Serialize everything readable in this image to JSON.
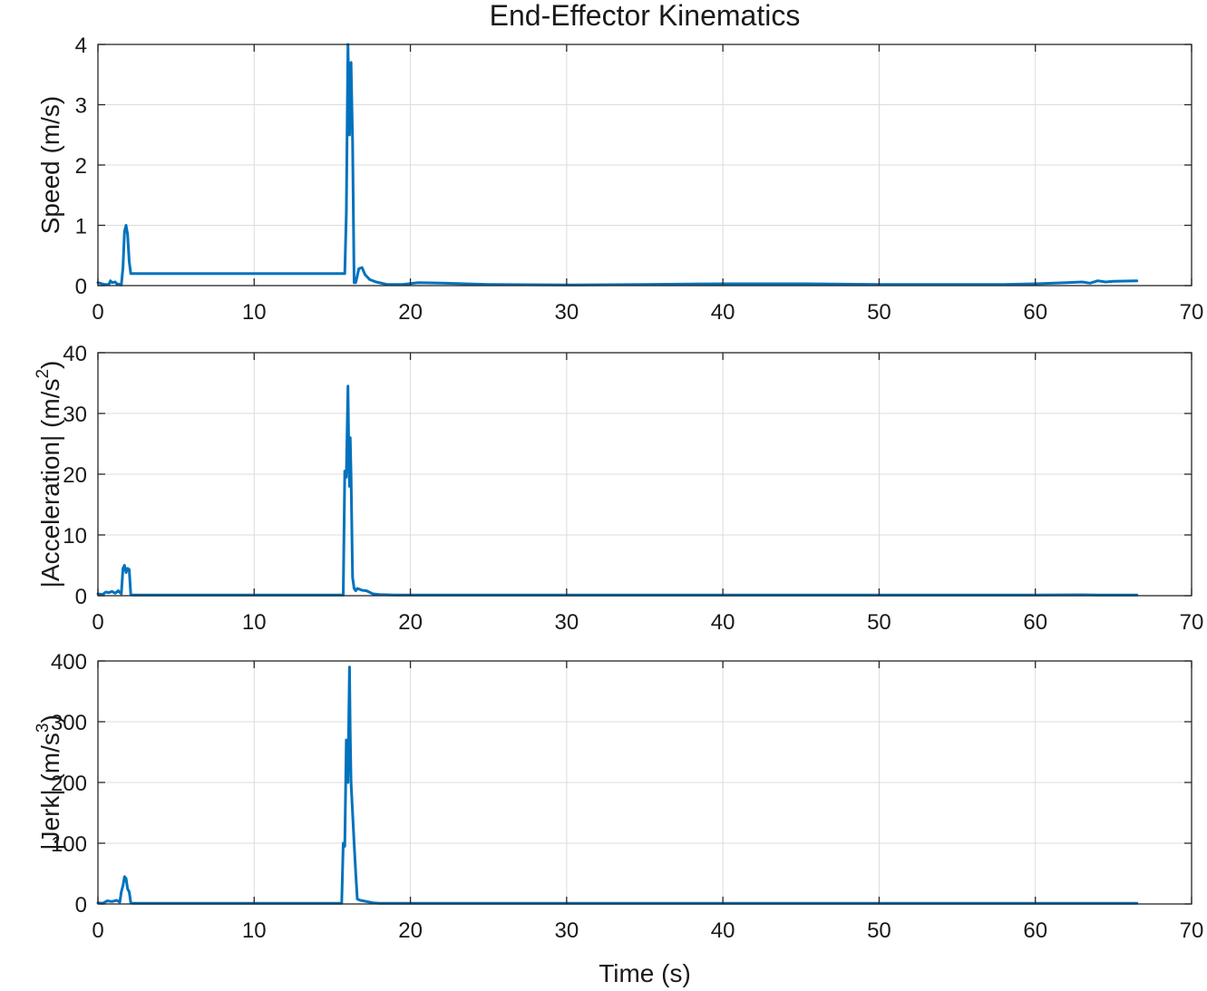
{
  "figure": {
    "title": "End-Effector Kinematics",
    "xlabel": "Time (s)"
  },
  "colors": {
    "series": "#0072BD"
  },
  "chart_data": [
    {
      "type": "line",
      "ylabel": "Speed (m/s)",
      "ylabel_super": "",
      "ylabel_suffix": "",
      "xlim": [
        0,
        70
      ],
      "ylim": [
        0,
        4
      ],
      "xticks": [
        0,
        10,
        20,
        30,
        40,
        50,
        60,
        70
      ],
      "yticks": [
        0,
        1,
        2,
        3,
        4
      ],
      "grid": true,
      "series": [
        {
          "x": [
            0,
            0.4,
            0.7,
            0.8,
            0.9,
            1.1,
            1.2,
            1.4,
            1.5,
            1.6,
            1.7,
            1.8,
            1.9,
            2.0,
            2.1,
            2.2,
            2.3,
            5,
            10,
            15,
            15.8,
            15.9,
            16.0,
            16.1,
            16.2,
            16.3,
            16.4,
            16.5,
            16.7,
            16.9,
            17.1,
            17.4,
            17.8,
            18.5,
            19.5,
            20.5,
            22,
            25,
            30,
            35,
            40,
            45,
            50,
            55,
            58,
            60,
            62,
            63,
            63.5,
            64,
            64.5,
            65,
            66.5
          ],
          "y": [
            0.05,
            0.02,
            0.02,
            0.08,
            0.05,
            0.06,
            0.03,
            0.02,
            0.01,
            0.3,
            0.9,
            1.0,
            0.85,
            0.4,
            0.2,
            0.2,
            0.2,
            0.2,
            0.2,
            0.2,
            0.2,
            1.2,
            4.0,
            2.5,
            3.7,
            2.4,
            0.05,
            0.05,
            0.28,
            0.3,
            0.18,
            0.1,
            0.06,
            0.02,
            0.02,
            0.05,
            0.04,
            0.02,
            0.01,
            0.02,
            0.03,
            0.03,
            0.02,
            0.02,
            0.02,
            0.03,
            0.05,
            0.06,
            0.04,
            0.08,
            0.06,
            0.07,
            0.08
          ]
        }
      ]
    },
    {
      "type": "line",
      "ylabel": "|Acceleration| (m/s",
      "ylabel_super": "2",
      "ylabel_suffix": ")",
      "xlim": [
        0,
        70
      ],
      "ylim": [
        0,
        40
      ],
      "xticks": [
        0,
        10,
        20,
        30,
        40,
        50,
        60,
        70
      ],
      "yticks": [
        0,
        10,
        20,
        30,
        40
      ],
      "grid": true,
      "series": [
        {
          "x": [
            0,
            0.3,
            0.5,
            0.7,
            0.9,
            1.1,
            1.3,
            1.5,
            1.6,
            1.7,
            1.8,
            1.9,
            2.0,
            2.1,
            2.2,
            5,
            10,
            15,
            15.7,
            15.8,
            15.9,
            16.0,
            16.05,
            16.1,
            16.15,
            16.2,
            16.3,
            16.4,
            16.5,
            16.6,
            16.9,
            17.2,
            17.6,
            18,
            19,
            25,
            35,
            45,
            55,
            60,
            63,
            64,
            66.5
          ],
          "y": [
            0.3,
            0.2,
            0.6,
            0.5,
            0.7,
            0.4,
            0.8,
            0.3,
            4.5,
            5.0,
            3.8,
            4.5,
            4.3,
            0.2,
            0.1,
            0.1,
            0.1,
            0.1,
            0.1,
            20.5,
            19.5,
            34.5,
            25,
            18,
            26,
            20,
            3,
            1.2,
            0.8,
            1.2,
            0.9,
            0.8,
            0.3,
            0.2,
            0.1,
            0.1,
            0.1,
            0.1,
            0.1,
            0.1,
            0.15,
            0.1,
            0.1
          ]
        }
      ]
    },
    {
      "type": "line",
      "ylabel": "|Jerk| (m/s",
      "ylabel_super": "3",
      "ylabel_suffix": ")",
      "xlim": [
        0,
        70
      ],
      "ylim": [
        0,
        400
      ],
      "xticks": [
        0,
        10,
        20,
        30,
        40,
        50,
        60,
        70
      ],
      "yticks": [
        0,
        100,
        200,
        300,
        400
      ],
      "grid": true,
      "series": [
        {
          "x": [
            0,
            0.3,
            0.6,
            0.9,
            1.2,
            1.4,
            1.5,
            1.6,
            1.7,
            1.8,
            1.9,
            2.0,
            2.1,
            2.2,
            5,
            10,
            15,
            15.6,
            15.7,
            15.8,
            15.9,
            16.0,
            16.1,
            16.15,
            16.2,
            16.3,
            16.4,
            16.5,
            16.6,
            16.8,
            17.2,
            17.6,
            18,
            25,
            35,
            45,
            55,
            66.5
          ],
          "y": [
            2,
            1,
            5,
            4,
            6,
            3,
            20,
            30,
            45,
            42,
            25,
            20,
            2,
            1,
            1,
            1,
            1,
            1,
            100,
            95,
            270,
            200,
            390,
            280,
            200,
            150,
            100,
            50,
            8,
            6,
            4,
            2,
            1,
            1,
            1,
            1,
            1,
            1
          ]
        }
      ]
    }
  ]
}
